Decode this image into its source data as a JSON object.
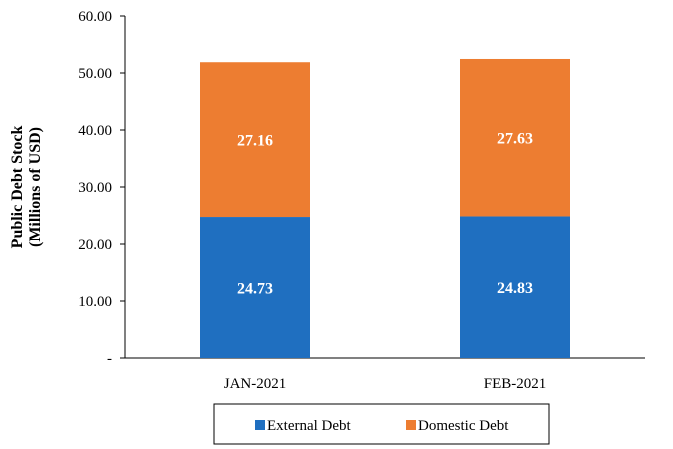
{
  "chart_data": {
    "type": "bar",
    "stacked": true,
    "categories": [
      "JAN-2021",
      "FEB-2021"
    ],
    "series": [
      {
        "name": "External Debt",
        "values": [
          24.73,
          24.83
        ],
        "color": "#1F6FC0"
      },
      {
        "name": "Domestic Debt",
        "values": [
          27.16,
          27.63
        ],
        "color": "#ED7D31"
      }
    ],
    "ylabel_lines": [
      "Public Debt Stock",
      "(Millions of USD)"
    ],
    "ylim": [
      0,
      60
    ],
    "yticks": [
      {
        "value": 0,
        "label": "-"
      },
      {
        "value": 10,
        "label": "10.00"
      },
      {
        "value": 20,
        "label": "20.00"
      },
      {
        "value": 30,
        "label": "30.00"
      },
      {
        "value": 40,
        "label": "40.00"
      },
      {
        "value": 50,
        "label": "50.00"
      },
      {
        "value": 60,
        "label": "60.00"
      }
    ],
    "data_labels": [
      [
        "24.73",
        "24.83"
      ],
      [
        "27.16",
        "27.63"
      ]
    ],
    "grid": false,
    "legend_position": "bottom"
  }
}
